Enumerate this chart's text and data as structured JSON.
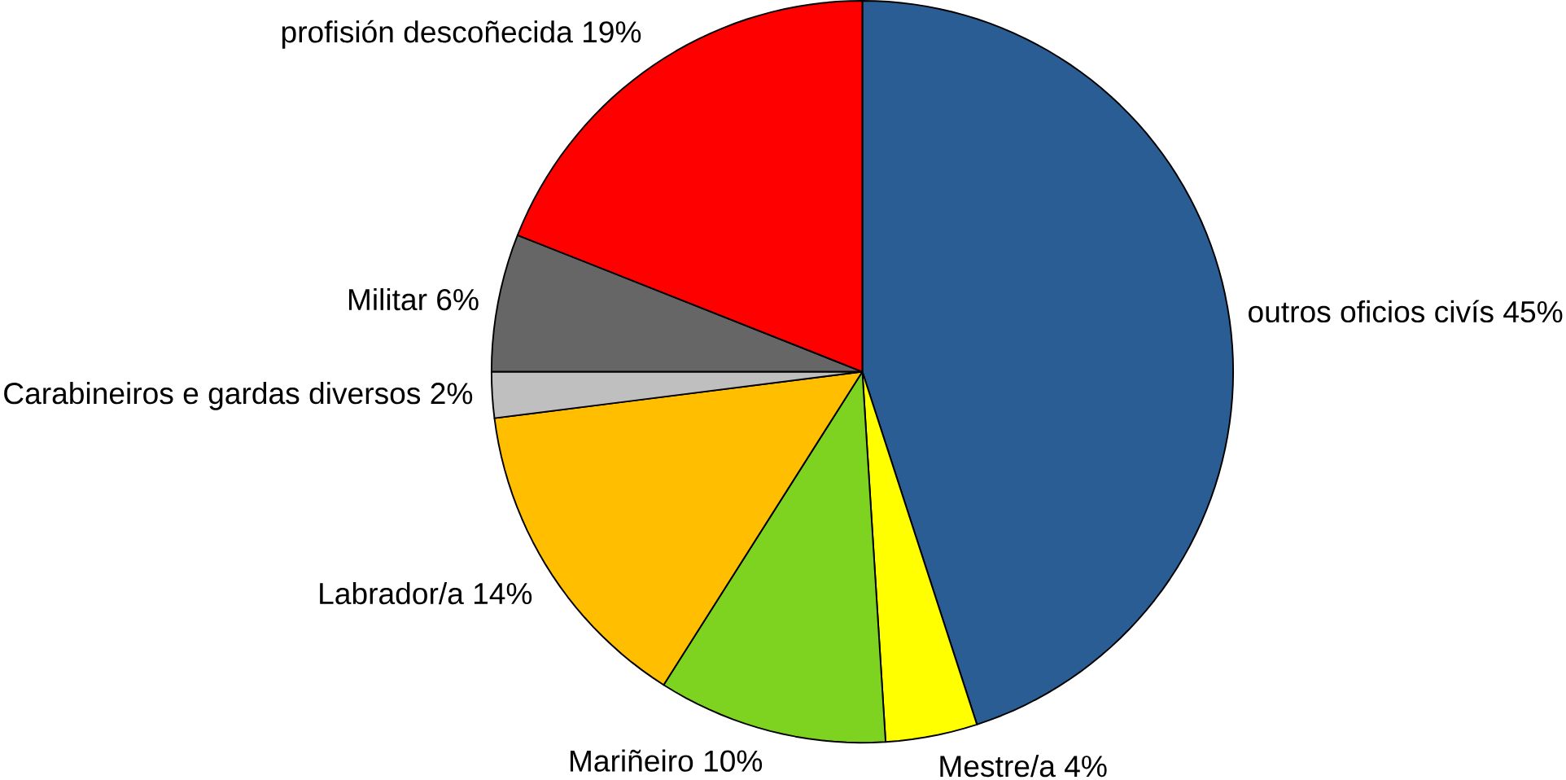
{
  "chart_data": {
    "type": "pie",
    "categories": [
      "outros oficios civís 45%",
      "Mestre/a 4%",
      "Mariñeiro 10%",
      "Labrador/a 14%",
      "Carabineiros e gardas diversos 2%",
      "Militar 6%",
      "profisión descoñecida 19%"
    ],
    "values": [
      45,
      4,
      10,
      14,
      2,
      6,
      19
    ],
    "colors": [
      "#2b5d95",
      "#ffff00",
      "#7ed321",
      "#ffbf00",
      "#bfbfbf",
      "#666666",
      "#ff0000"
    ]
  }
}
